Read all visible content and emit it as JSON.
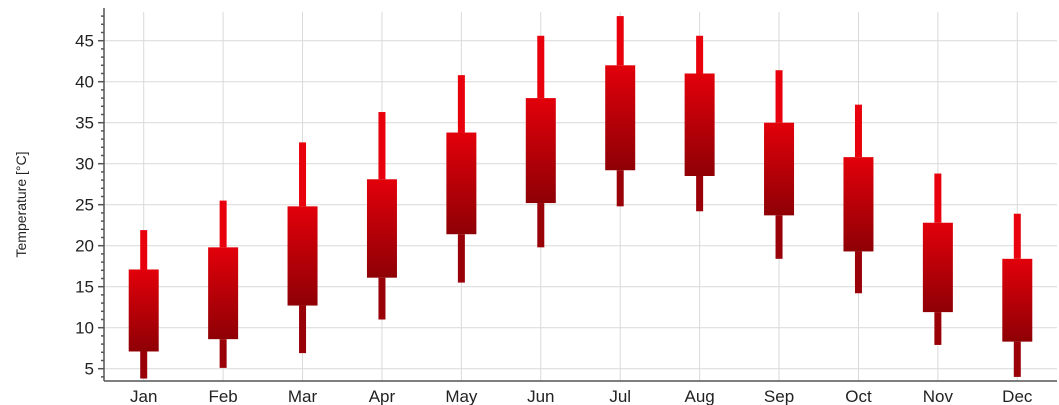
{
  "chart_data": {
    "type": "candlestick",
    "categories": [
      "Jan",
      "Feb",
      "Mar",
      "Apr",
      "May",
      "Jun",
      "Jul",
      "Aug",
      "Sep",
      "Oct",
      "Nov",
      "Dec"
    ],
    "series": [
      {
        "low": [
          3.8,
          5.1,
          6.9,
          11.0,
          15.5,
          19.8,
          24.8,
          24.2,
          18.4,
          14.2,
          7.9,
          4.0
        ],
        "q1": [
          7.1,
          8.6,
          12.7,
          16.1,
          21.4,
          25.2,
          29.2,
          28.5,
          23.7,
          19.3,
          11.9,
          8.3
        ],
        "q3": [
          17.1,
          19.8,
          24.8,
          28.1,
          33.8,
          38.0,
          42.0,
          41.0,
          35.0,
          30.8,
          22.8,
          18.4
        ],
        "high": [
          21.9,
          25.5,
          32.6,
          36.3,
          40.8,
          45.6,
          48.0,
          45.6,
          41.4,
          37.2,
          28.8,
          23.9
        ],
        "color": "#cc0000"
      }
    ],
    "ylabel": "Temperature [°C]",
    "ylim": [
      3.5,
      48.5
    ],
    "yticks": [
      5,
      10,
      15,
      20,
      25,
      30,
      35,
      40,
      45
    ],
    "grid": true,
    "legend": "none"
  }
}
